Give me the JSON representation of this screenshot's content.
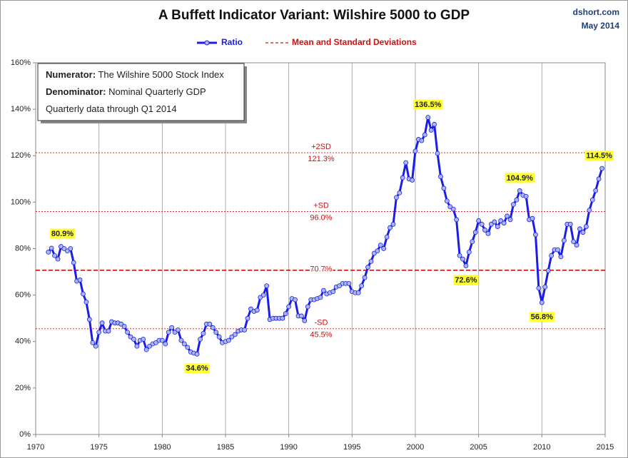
{
  "chart_data": {
    "type": "line",
    "title": "A Buffett Indicator Variant: Wilshire 5000 to GDP",
    "source": "dshort.com",
    "date": "May 2014",
    "notes": [
      {
        "label": "Numerator:",
        "text": "The Wilshire 5000 Stock Index"
      },
      {
        "label": "Denominator:",
        "text": "Nominal Quarterly GDP"
      },
      {
        "text": "Quarterly data through Q1 2014"
      }
    ],
    "xlim": [
      1970,
      2015
    ],
    "xticks": [
      1970,
      1975,
      1980,
      1985,
      1990,
      1995,
      2000,
      2005,
      2010,
      2015
    ],
    "ylim": [
      0,
      160
    ],
    "yticks": [
      {
        "value": 0,
        "label": "0%"
      },
      {
        "value": 20,
        "label": "20%"
      },
      {
        "value": 40,
        "label": "40%"
      },
      {
        "value": 60,
        "label": "60%"
      },
      {
        "value": 80,
        "label": "80%"
      },
      {
        "value": 100,
        "label": "100%"
      },
      {
        "value": 120,
        "label": "120%"
      },
      {
        "value": 140,
        "label": "140%"
      },
      {
        "value": 160,
        "label": "160%"
      }
    ],
    "grid": true,
    "x": [
      1971,
      1971.25,
      1971.5,
      1971.75,
      1972,
      1972.25,
      1972.5,
      1972.75,
      1973,
      1973.25,
      1973.5,
      1973.75,
      1974,
      1974.25,
      1974.5,
      1974.75,
      1975,
      1975.25,
      1975.5,
      1975.75,
      1976,
      1976.25,
      1976.5,
      1976.75,
      1977,
      1977.25,
      1977.5,
      1977.75,
      1978,
      1978.25,
      1978.5,
      1978.75,
      1979,
      1979.25,
      1979.5,
      1979.75,
      1980,
      1980.25,
      1980.5,
      1980.75,
      1981,
      1981.25,
      1981.5,
      1981.75,
      1982,
      1982.25,
      1982.5,
      1982.75,
      1983,
      1983.25,
      1983.5,
      1983.75,
      1984,
      1984.25,
      1984.5,
      1984.75,
      1985,
      1985.25,
      1985.5,
      1985.75,
      1986,
      1986.25,
      1986.5,
      1986.75,
      1987,
      1987.25,
      1987.5,
      1987.75,
      1988,
      1988.25,
      1988.5,
      1988.75,
      1989,
      1989.25,
      1989.5,
      1989.75,
      1990,
      1990.25,
      1990.5,
      1990.75,
      1991,
      1991.25,
      1991.5,
      1991.75,
      1992,
      1992.25,
      1992.5,
      1992.75,
      1993,
      1993.25,
      1993.5,
      1993.75,
      1994,
      1994.25,
      1994.5,
      1994.75,
      1995,
      1995.25,
      1995.5,
      1995.75,
      1996,
      1996.25,
      1996.5,
      1996.75,
      1997,
      1997.25,
      1997.5,
      1997.75,
      1998,
      1998.25,
      1998.5,
      1998.75,
      1999,
      1999.25,
      1999.5,
      1999.75,
      2000,
      2000.25,
      2000.5,
      2000.75,
      2001,
      2001.25,
      2001.5,
      2001.75,
      2002,
      2002.25,
      2002.5,
      2002.75,
      2003,
      2003.25,
      2003.5,
      2003.75,
      2004,
      2004.25,
      2004.5,
      2004.75,
      2005,
      2005.25,
      2005.5,
      2005.75,
      2006,
      2006.25,
      2006.5,
      2006.75,
      2007,
      2007.25,
      2007.5,
      2007.75,
      2008,
      2008.25,
      2008.5,
      2008.75,
      2009,
      2009.25,
      2009.5,
      2009.75,
      2010,
      2010.25,
      2010.5,
      2010.75,
      2011,
      2011.25,
      2011.5,
      2011.75,
      2012,
      2012.25,
      2012.5,
      2012.75,
      2013,
      2013.25,
      2013.5,
      2013.75,
      2014,
      2014.25,
      2014.5,
      2014.75
    ],
    "series": [
      {
        "name": "Ratio",
        "color": "#1c1ce8",
        "marker_color": "#a9b8f5",
        "values": [
          78.5,
          80.2,
          77,
          75.5,
          80.9,
          80,
          79,
          80,
          74,
          66,
          66.5,
          60.5,
          57,
          49.5,
          39.5,
          38,
          44,
          48,
          44.5,
          44.5,
          48.5,
          48,
          48,
          47.5,
          46.5,
          44,
          42,
          41,
          38,
          40.5,
          41,
          36.5,
          38,
          39,
          39.5,
          40.5,
          40.5,
          39,
          44,
          46,
          44,
          45,
          40.5,
          39,
          37.5,
          35.5,
          35,
          34.6,
          41,
          43.5,
          47.5,
          47.5,
          46,
          44,
          42,
          39.5,
          40,
          40.5,
          42,
          43,
          44.5,
          45,
          45,
          50,
          54,
          53,
          53.5,
          59,
          60,
          64,
          49.5,
          50,
          50,
          50,
          50,
          52,
          55,
          58.5,
          58,
          51,
          51,
          49,
          55,
          58,
          58,
          58.5,
          59,
          62,
          60.5,
          61,
          61.5,
          63.5,
          64,
          65,
          65,
          65,
          61.5,
          61,
          61,
          64,
          67.5,
          72,
          74.5,
          78,
          79,
          81.5,
          80,
          85,
          89,
          90.5,
          102,
          104,
          110.5,
          117,
          110,
          109.5,
          122,
          127,
          126.5,
          129,
          136.5,
          131,
          133.5,
          121,
          111,
          106,
          100.5,
          98,
          97,
          92.5,
          77,
          75.5,
          72.6,
          78.5,
          83,
          87,
          92,
          90.5,
          88,
          86.5,
          90.5,
          91.5,
          89.5,
          92,
          91,
          94,
          92.5,
          99,
          101,
          104.9,
          103,
          102.5,
          92.5,
          93,
          86,
          63,
          56.8,
          63.5,
          70.5,
          77,
          79.5,
          79.5,
          76.5,
          83.5,
          90.5,
          90.5,
          83,
          81.5,
          88.5,
          87,
          89.5,
          96.5,
          101,
          105,
          110,
          114.5
        ]
      }
    ],
    "reference_name": "Mean and Standard Deviations",
    "reference_color": "#cc1111",
    "reference_lines": [
      {
        "name": "+2SD",
        "value": 121.3,
        "label": "121.3%"
      },
      {
        "name": "+SD",
        "value": 96.0,
        "label": "96.0%"
      },
      {
        "value": 70.7,
        "label": "70.7%",
        "mean": true
      },
      {
        "name": "-SD",
        "value": 45.5,
        "label": "45.5%"
      }
    ],
    "annotations": [
      {
        "x": 1972,
        "y": 80.9,
        "label": "80.9%"
      },
      {
        "x": 1982.75,
        "y": 34.6,
        "label": "34.6%"
      },
      {
        "x": 2001,
        "y": 136.5,
        "label": "136.5%"
      },
      {
        "x": 2004,
        "y": 72.6,
        "label": "72.6%"
      },
      {
        "x": 2008.25,
        "y": 104.9,
        "label": "104.9%"
      },
      {
        "x": 2010,
        "y": 56.8,
        "label": "56.8%"
      },
      {
        "x": 2014.75,
        "y": 114.5,
        "label": "114.5%"
      }
    ]
  }
}
